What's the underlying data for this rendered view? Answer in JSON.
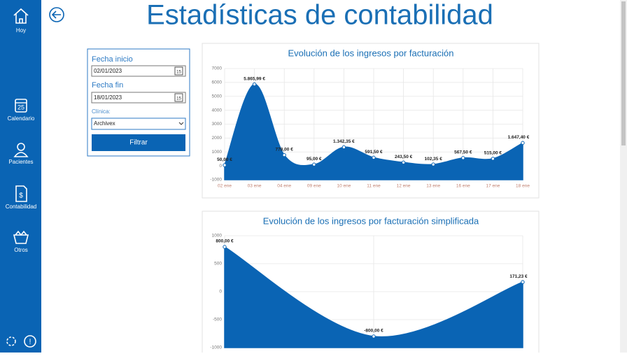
{
  "sidebar": {
    "items": [
      "Hoy",
      "Calendario",
      "Pacientes",
      "Contabilidad",
      "Otros"
    ],
    "calendar_day": "25"
  },
  "header": {
    "title": "Estadísticas de contabilidad"
  },
  "filter": {
    "start_label": "Fecha inicio",
    "start_value": "02/01/2023",
    "end_label": "Fecha fin",
    "end_value": "18/01/2023",
    "clinic_label": "Clínica:",
    "clinic_value": "Archivex",
    "button": "Filtrar",
    "calendar_icon_day": "15"
  },
  "chart_data": [
    {
      "type": "area",
      "title": "Evolución de los ingresos por facturación",
      "color": "#0a64b4",
      "categories": [
        "02 ene",
        "03 ene",
        "04 ene",
        "09 ene",
        "10 ene",
        "11 ene",
        "12 ene",
        "13 ene",
        "16 ene",
        "17 ene",
        "18 ene"
      ],
      "values": [
        50,
        5865.99,
        778,
        95,
        1342.35,
        591.5,
        243.5,
        102.35,
        567.5,
        515,
        1647.4
      ],
      "value_labels": [
        "50,00 €",
        "5.865,99 €",
        "778,00 €",
        "95,00 €",
        "1.342,35 €",
        "591,50 €",
        "243,50 €",
        "102,35 €",
        "567,50 €",
        "515,00 €",
        "1.647,40 €"
      ],
      "ylim": [
        -1000,
        7000
      ],
      "yticks": [
        -1000,
        0,
        1000,
        2000,
        3000,
        4000,
        5000,
        6000,
        7000
      ],
      "grid": true
    },
    {
      "type": "area",
      "title": "Evolución de los ingresos por facturación simplificada",
      "color": "#0a64b4",
      "categories": [
        null,
        null,
        null
      ],
      "values": [
        800,
        -800,
        171.23
      ],
      "value_labels": [
        "800,00 €",
        "-800,00 €",
        "171,23 €"
      ],
      "ylim": [
        -1000,
        1000
      ],
      "yticks": [
        -1000,
        -500,
        0,
        500,
        1000
      ],
      "grid": true
    }
  ]
}
